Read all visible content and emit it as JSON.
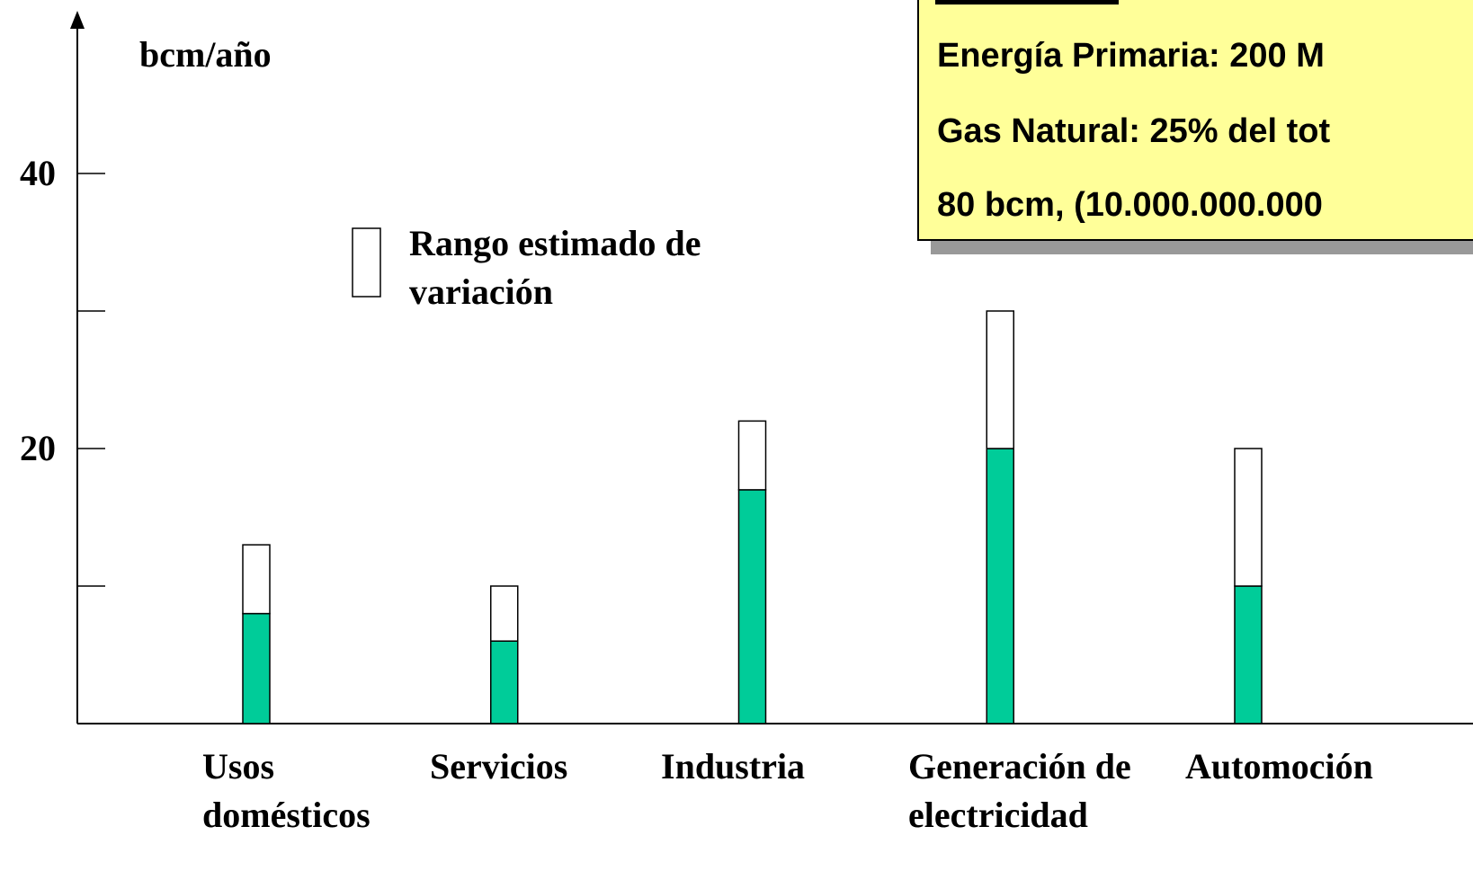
{
  "chart_data": {
    "type": "bar",
    "stacked": true,
    "y_label": "bcm/año",
    "categories": [
      "Usos domésticos",
      "Servicios",
      "Industria",
      "Generación de electricidad",
      "Automoción"
    ],
    "series": [
      {
        "color": "#00cc99",
        "values": [
          8,
          6,
          17,
          20,
          10
        ]
      },
      {
        "name": "Rango estimado de variación",
        "color": "#ffffff",
        "values": [
          5,
          4,
          5,
          10,
          10
        ]
      }
    ],
    "ylim": [
      0,
      52
    ],
    "yticks": [
      {
        "value": 10,
        "label": null
      },
      20,
      {
        "value": 30,
        "label": null
      },
      40
    ],
    "annotations": [
      "Energía Primaria: 200 M",
      "Gas Natural: 25% del tot",
      "80 bcm, (10.000.000.000"
    ]
  }
}
